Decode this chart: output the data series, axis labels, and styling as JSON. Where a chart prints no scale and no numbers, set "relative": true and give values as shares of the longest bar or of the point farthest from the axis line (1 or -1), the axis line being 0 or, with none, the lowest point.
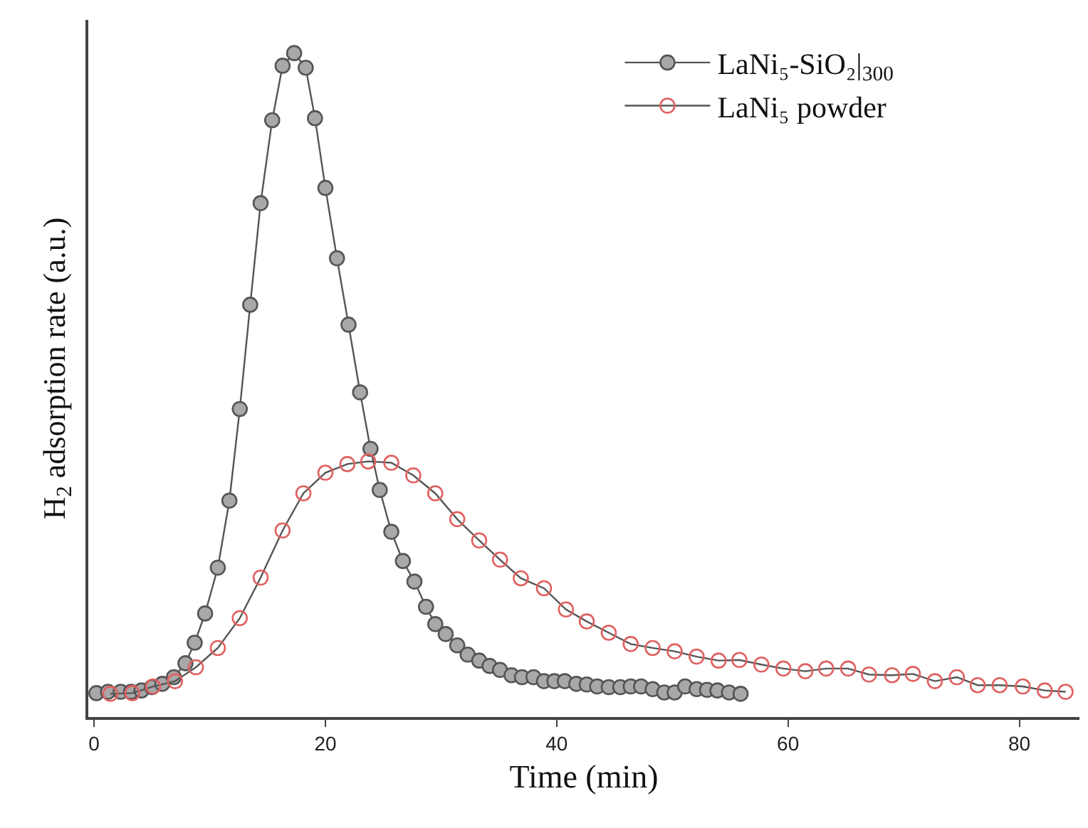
{
  "chart_data": {
    "type": "line",
    "xlabel": "Time (min)",
    "ylabel": "H$_{2}$ adsorption rate (a.u.)",
    "relative": true,
    "xlim": [
      -0.5,
      85.2
    ],
    "xticks": [
      0,
      20,
      40,
      60,
      80
    ],
    "legend": "top right",
    "line_style": "solid",
    "series": [
      {
        "name": "LaNi₅-SiO₂|$_{300}$",
        "color": "#a8a8a8",
        "marker": "circle",
        "x": [
          0.2,
          1.2,
          2.3,
          3.2,
          4.1,
          5.0,
          5.9,
          6.9,
          7.9,
          8.7,
          9.6,
          10.7,
          11.7,
          12.6,
          13.5,
          14.4,
          15.4,
          16.3,
          17.3,
          18.3,
          19.1,
          20.0,
          21.0,
          22.0,
          23.0,
          23.9,
          24.7,
          25.7,
          26.7,
          27.7,
          28.7,
          29.5,
          30.4,
          31.4,
          32.3,
          33.3,
          34.2,
          35.1,
          36.1,
          37.0,
          38.0,
          38.9,
          39.8,
          40.7,
          41.7,
          42.6,
          43.5,
          44.5,
          45.5,
          46.4,
          47.3,
          48.3,
          49.3,
          50.2,
          51.1,
          52.1,
          53.0,
          53.9,
          54.9,
          55.9
        ],
        "values": [
          0.036,
          0.038,
          0.038,
          0.038,
          0.04,
          0.045,
          0.05,
          0.06,
          0.081,
          0.112,
          0.156,
          0.225,
          0.326,
          0.464,
          0.621,
          0.774,
          0.899,
          0.981,
          1.0,
          0.978,
          0.902,
          0.797,
          0.691,
          0.591,
          0.489,
          0.404,
          0.342,
          0.279,
          0.235,
          0.204,
          0.166,
          0.14,
          0.125,
          0.108,
          0.094,
          0.085,
          0.077,
          0.071,
          0.063,
          0.06,
          0.06,
          0.054,
          0.054,
          0.054,
          0.05,
          0.049,
          0.046,
          0.045,
          0.045,
          0.046,
          0.046,
          0.042,
          0.037,
          0.037,
          0.046,
          0.042,
          0.041,
          0.04,
          0.037,
          0.035
        ]
      },
      {
        "name": "LaNi₅ powder",
        "color": "#e06060",
        "marker": "open_circle",
        "x": [
          1.4,
          3.3,
          5.1,
          7.0,
          8.8,
          10.7,
          12.6,
          14.4,
          16.3,
          18.1,
          20.0,
          21.9,
          23.7,
          25.7,
          27.6,
          29.5,
          31.4,
          33.3,
          35.1,
          36.9,
          38.9,
          40.8,
          42.6,
          44.5,
          46.4,
          48.3,
          50.2,
          52.1,
          54.0,
          55.8,
          57.7,
          59.6,
          61.5,
          63.3,
          65.2,
          67.0,
          69.0,
          70.8,
          72.7,
          74.6,
          76.4,
          78.3,
          80.3,
          82.2,
          84.0
        ],
        "values": [
          0.035,
          0.036,
          0.046,
          0.054,
          0.075,
          0.104,
          0.149,
          0.21,
          0.281,
          0.337,
          0.368,
          0.381,
          0.385,
          0.383,
          0.364,
          0.337,
          0.298,
          0.266,
          0.237,
          0.209,
          0.194,
          0.162,
          0.144,
          0.127,
          0.11,
          0.104,
          0.099,
          0.091,
          0.085,
          0.086,
          0.079,
          0.073,
          0.069,
          0.073,
          0.073,
          0.064,
          0.063,
          0.065,
          0.054,
          0.06,
          0.048,
          0.048,
          0.046,
          0.04,
          0.038
        ]
      }
    ]
  }
}
